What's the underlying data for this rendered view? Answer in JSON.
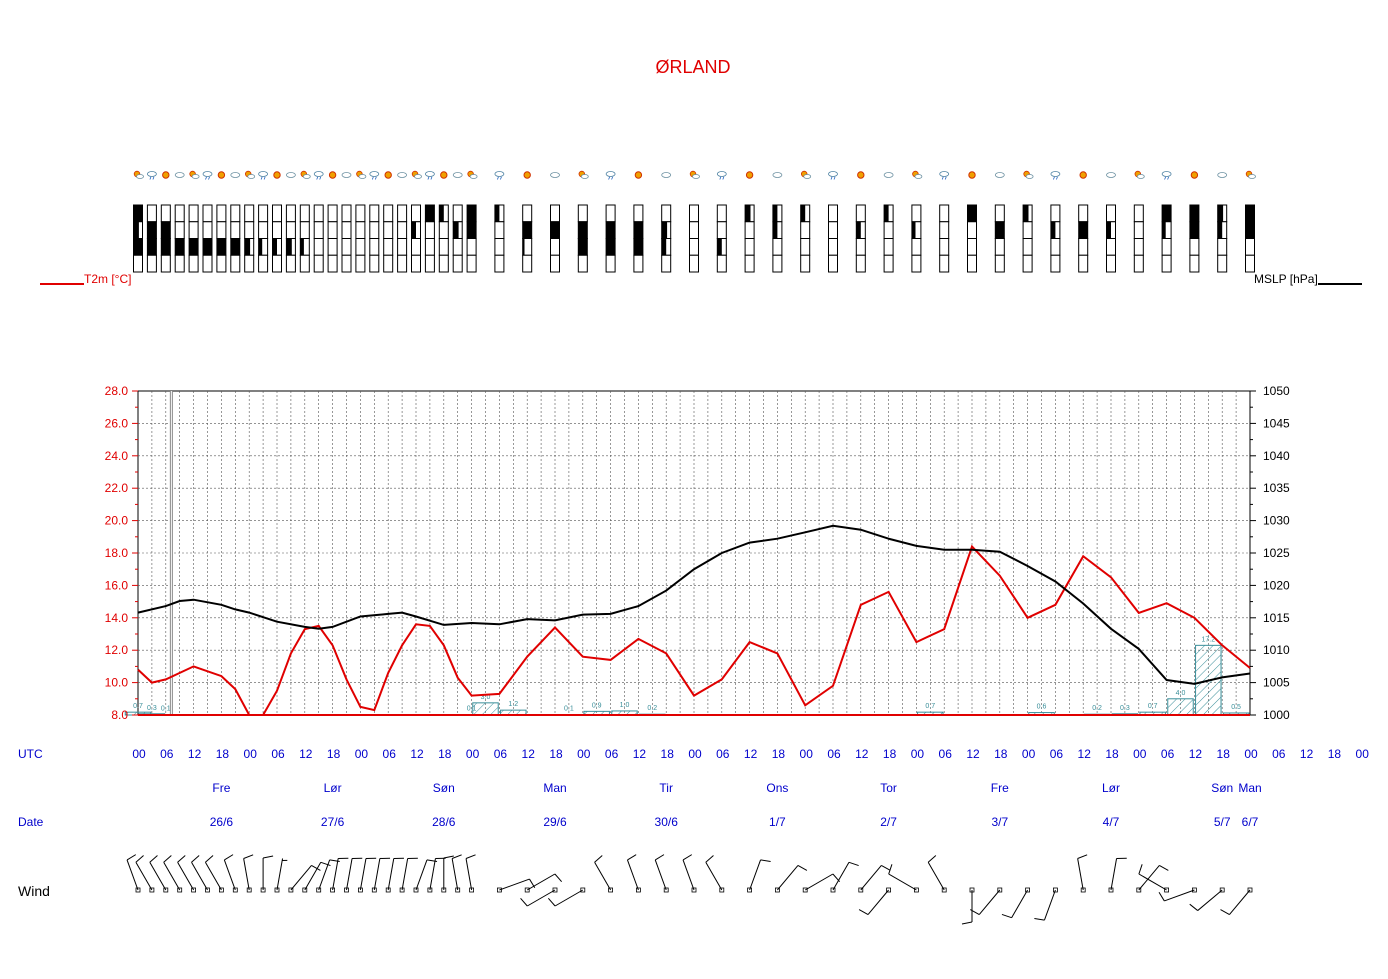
{
  "colors": {
    "temp": "#e00000",
    "mslp": "#000000",
    "precip": "#3a8f9a",
    "labels": "#0000cc",
    "grid": "#555555"
  },
  "labels": {
    "title": "ØRLAND",
    "temp_axis": "T2m [°C]",
    "mslp_axis": "MSLP [hPa]",
    "utc": "UTC",
    "date": "Date",
    "wind": "Wind"
  },
  "chart_data": {
    "type": "line",
    "title": "ØRLAND",
    "x_unit": "hours from 2020-06-25 18 UTC (step 3h to 06 UTC 30/6, then 6h)",
    "x": [
      0,
      3,
      6,
      9,
      12,
      15,
      18,
      21,
      24,
      27,
      30,
      33,
      36,
      39,
      42,
      45,
      48,
      51,
      54,
      57,
      60,
      63,
      66,
      69,
      72,
      75,
      78,
      84,
      90,
      96,
      102,
      108,
      114,
      120,
      126,
      132,
      138,
      144,
      150,
      156,
      162,
      168,
      174,
      180,
      186,
      192,
      198,
      204,
      210,
      216,
      222,
      228,
      234,
      240,
      246,
      252,
      258,
      264,
      270,
      276,
      282,
      288,
      294,
      300,
      306,
      312,
      318,
      324,
      330,
      336,
      342,
      348,
      354,
      360
    ],
    "ylim_temp": [
      8,
      28
    ],
    "ylim_mslp": [
      1000,
      1050
    ],
    "yticks_temp": [
      "28.0",
      "26.0",
      "24.0",
      "22.0",
      "20.0",
      "18.0",
      "16.0",
      "14.0",
      "12.0",
      "10.0",
      "8.0"
    ],
    "yticks_mslp": [
      "1050",
      "1045",
      "1040",
      "1035",
      "1030",
      "1025",
      "1020",
      "1015",
      "1010",
      "1005",
      "1000"
    ],
    "x_tick_labels": [
      "00",
      "06",
      "12",
      "18",
      "00",
      "06",
      "12",
      "18",
      "00",
      "06",
      "12",
      "18",
      "00",
      "06",
      "12",
      "18",
      "00",
      "06",
      "12",
      "18",
      "00",
      "06",
      "12",
      "18",
      "00",
      "06",
      "12",
      "18",
      "00",
      "06",
      "12",
      "18",
      "00",
      "06",
      "12",
      "18",
      "00",
      "06",
      "12",
      "18",
      "00",
      "06",
      "12",
      "18",
      "00"
    ],
    "days": [
      {
        "name": "Fre",
        "date": "26/6"
      },
      {
        "name": "Lør",
        "date": "27/6"
      },
      {
        "name": "Søn",
        "date": "28/6"
      },
      {
        "name": "Man",
        "date": "29/6"
      },
      {
        "name": "Tir",
        "date": "30/6"
      },
      {
        "name": "Ons",
        "date": "1/7"
      },
      {
        "name": "Tor",
        "date": "2/7"
      },
      {
        "name": "Fre",
        "date": "3/7"
      },
      {
        "name": "Lør",
        "date": "4/7"
      },
      {
        "name": "Søn",
        "date": "5/7"
      },
      {
        "name": "Man",
        "date": "6/7"
      }
    ],
    "series": [
      {
        "name": "T2m [°C]",
        "axis": "left",
        "points": [
          [
            0,
            10.8
          ],
          [
            3,
            10.0
          ],
          [
            6,
            10.2
          ],
          [
            12,
            11.0
          ],
          [
            18,
            10.4
          ],
          [
            21,
            9.6
          ],
          [
            24,
            8.0
          ],
          [
            27,
            8.0
          ],
          [
            30,
            9.5
          ],
          [
            33,
            11.8
          ],
          [
            36,
            13.3
          ],
          [
            39,
            13.5
          ],
          [
            42,
            12.3
          ],
          [
            45,
            10.2
          ],
          [
            48,
            8.5
          ],
          [
            51,
            8.3
          ],
          [
            54,
            10.6
          ],
          [
            57,
            12.3
          ],
          [
            60,
            13.6
          ],
          [
            63,
            13.5
          ],
          [
            66,
            12.3
          ],
          [
            69,
            10.3
          ],
          [
            72,
            9.2
          ],
          [
            78,
            9.3
          ],
          [
            84,
            11.6
          ],
          [
            90,
            13.4
          ],
          [
            96,
            11.6
          ],
          [
            102,
            11.4
          ],
          [
            108,
            12.7
          ],
          [
            114,
            11.8
          ],
          [
            120,
            9.2
          ],
          [
            126,
            10.2
          ],
          [
            132,
            12.5
          ],
          [
            138,
            11.8
          ],
          [
            144,
            8.6
          ],
          [
            150,
            9.8
          ],
          [
            156,
            14.8
          ],
          [
            162,
            15.6
          ],
          [
            168,
            12.5
          ],
          [
            174,
            13.3
          ],
          [
            180,
            18.4
          ],
          [
            186,
            16.6
          ],
          [
            192,
            14.0
          ],
          [
            198,
            14.8
          ],
          [
            204,
            17.8
          ],
          [
            210,
            16.5
          ],
          [
            216,
            14.3
          ],
          [
            222,
            14.9
          ],
          [
            228,
            14.0
          ],
          [
            234,
            12.3
          ],
          [
            240,
            10.9
          ]
        ]
      },
      {
        "name": "MSLP [hPa]",
        "axis": "right",
        "points": [
          [
            0,
            1015.8
          ],
          [
            6,
            1016.8
          ],
          [
            9,
            1017.6
          ],
          [
            12,
            1017.8
          ],
          [
            18,
            1017.0
          ],
          [
            21,
            1016.3
          ],
          [
            24,
            1015.8
          ],
          [
            30,
            1014.4
          ],
          [
            36,
            1013.6
          ],
          [
            39,
            1013.3
          ],
          [
            42,
            1013.6
          ],
          [
            48,
            1015.2
          ],
          [
            54,
            1015.6
          ],
          [
            57,
            1015.8
          ],
          [
            60,
            1015.2
          ],
          [
            66,
            1013.9
          ],
          [
            72,
            1014.2
          ],
          [
            78,
            1014.0
          ],
          [
            84,
            1014.8
          ],
          [
            90,
            1014.6
          ],
          [
            96,
            1015.5
          ],
          [
            102,
            1015.6
          ],
          [
            108,
            1016.8
          ],
          [
            114,
            1019.2
          ],
          [
            120,
            1022.5
          ],
          [
            126,
            1025.0
          ],
          [
            132,
            1026.6
          ],
          [
            138,
            1027.2
          ],
          [
            144,
            1028.2
          ],
          [
            150,
            1029.2
          ],
          [
            156,
            1028.6
          ],
          [
            162,
            1027.2
          ],
          [
            168,
            1026.1
          ],
          [
            174,
            1025.5
          ],
          [
            180,
            1025.5
          ],
          [
            186,
            1025.2
          ],
          [
            192,
            1023.0
          ],
          [
            198,
            1020.6
          ],
          [
            204,
            1017.2
          ],
          [
            210,
            1013.3
          ],
          [
            216,
            1010.2
          ],
          [
            222,
            1005.4
          ],
          [
            228,
            1004.8
          ],
          [
            234,
            1005.8
          ],
          [
            240,
            1006.4
          ]
        ]
      }
    ],
    "precip": [
      {
        "x": 0,
        "v": 0.7
      },
      {
        "x": 3,
        "v": 0.3
      },
      {
        "x": 6,
        "v": 0.1
      },
      {
        "x": 72,
        "v": 0.1
      },
      {
        "x": 75,
        "v": 3.0
      },
      {
        "x": 81,
        "v": 1.2
      },
      {
        "x": 93,
        "v": 0.1
      },
      {
        "x": 99,
        "v": 0.9
      },
      {
        "x": 105,
        "v": 1.0
      },
      {
        "x": 111,
        "v": 0.2
      },
      {
        "x": 171,
        "v": 0.7
      },
      {
        "x": 195,
        "v": 0.6
      },
      {
        "x": 207,
        "v": 0.2
      },
      {
        "x": 213,
        "v": 0.3
      },
      {
        "x": 219,
        "v": 0.7
      },
      {
        "x": 225,
        "v": 4.0
      },
      {
        "x": 231,
        "v": 17.2
      },
      {
        "x": 237,
        "v": 0.5
      }
    ],
    "precip_scale_mm_per_degC": 0.25,
    "cloud_columns": {
      "x": [
        0,
        3,
        6,
        9,
        12,
        15,
        18,
        21,
        24,
        27,
        30,
        33,
        36,
        39,
        42,
        45,
        48,
        51,
        54,
        57,
        60,
        63,
        66,
        69,
        72,
        78,
        84,
        90,
        96,
        102,
        108,
        114,
        120,
        126,
        132,
        138,
        144,
        150,
        156,
        162,
        168,
        174,
        180,
        186,
        192,
        198,
        204,
        210,
        216,
        222,
        228,
        234,
        240
      ],
      "fill": [
        [
          1,
          0.6,
          1,
          0
        ],
        [
          0,
          1,
          1,
          0
        ],
        [
          0,
          1,
          1,
          0
        ],
        [
          0,
          0,
          1,
          0
        ],
        [
          0,
          0,
          1,
          0
        ],
        [
          0,
          0,
          1,
          0
        ],
        [
          0,
          0,
          1,
          0
        ],
        [
          0,
          0,
          1,
          0
        ],
        [
          0,
          0,
          0.6,
          0
        ],
        [
          0,
          0,
          0.4,
          0
        ],
        [
          0,
          0,
          0.5,
          0
        ],
        [
          0,
          0,
          0.6,
          0
        ],
        [
          0,
          0,
          0.4,
          0
        ],
        [
          0,
          0,
          0,
          0
        ],
        [
          0,
          0,
          0,
          0
        ],
        [
          0,
          0,
          0,
          0
        ],
        [
          0,
          0,
          0,
          0
        ],
        [
          0,
          0,
          0,
          0
        ],
        [
          0,
          0,
          0,
          0
        ],
        [
          0,
          0,
          0,
          0
        ],
        [
          0,
          0.5,
          0,
          0
        ],
        [
          1,
          0,
          0,
          0
        ],
        [
          0.5,
          0,
          0,
          0
        ],
        [
          0,
          0.6,
          0,
          0
        ],
        [
          1,
          1,
          0,
          0
        ],
        [
          0.5,
          0,
          0,
          0
        ],
        [
          0,
          1,
          0.2,
          0
        ],
        [
          0,
          1,
          0,
          0
        ],
        [
          0,
          1,
          1,
          0
        ],
        [
          0,
          1,
          1,
          0
        ],
        [
          0,
          1,
          1,
          0
        ],
        [
          0,
          0.6,
          0.5,
          0
        ],
        [
          0,
          0,
          0,
          0
        ],
        [
          0,
          0,
          0.5,
          0
        ],
        [
          0.6,
          0,
          0,
          0
        ],
        [
          0.5,
          0.5,
          0,
          0
        ],
        [
          0.5,
          0,
          0,
          0
        ],
        [
          0,
          0,
          0,
          0
        ],
        [
          0,
          0.5,
          0,
          0
        ],
        [
          0.5,
          0,
          0,
          0
        ],
        [
          0,
          0.4,
          0,
          0
        ],
        [
          0,
          0,
          0,
          0
        ],
        [
          1,
          0,
          0,
          0
        ],
        [
          0,
          1,
          0,
          0
        ],
        [
          0.6,
          0,
          0,
          0
        ],
        [
          0,
          0.5,
          0,
          0
        ],
        [
          0,
          1,
          0,
          0
        ],
        [
          0,
          0.5,
          0,
          0
        ],
        [
          0,
          0,
          0,
          0
        ],
        [
          1,
          0.4,
          0,
          0
        ],
        [
          1,
          1,
          0,
          0
        ],
        [
          0.6,
          0.5,
          0,
          0
        ],
        [
          1,
          1,
          0,
          0
        ]
      ]
    },
    "weather_icons": [
      "partly-cloudy-icon",
      "rain-icon",
      "sun-icon",
      "cloud-icon"
    ],
    "wind": [
      {
        "x": 0,
        "dir": 340,
        "spd": 10
      },
      {
        "x": 3,
        "dir": 330,
        "spd": 12
      },
      {
        "x": 6,
        "dir": 330,
        "spd": 12
      },
      {
        "x": 9,
        "dir": 330,
        "spd": 12
      },
      {
        "x": 12,
        "dir": 330,
        "spd": 12
      },
      {
        "x": 15,
        "dir": 330,
        "spd": 10
      },
      {
        "x": 18,
        "dir": 330,
        "spd": 10
      },
      {
        "x": 21,
        "dir": 340,
        "spd": 8
      },
      {
        "x": 24,
        "dir": 350,
        "spd": 8
      },
      {
        "x": 27,
        "dir": 0,
        "spd": 8
      },
      {
        "x": 30,
        "dir": 10,
        "spd": 6
      },
      {
        "x": 33,
        "dir": 40,
        "spd": 8
      },
      {
        "x": 36,
        "dir": 30,
        "spd": 10
      },
      {
        "x": 39,
        "dir": 20,
        "spd": 12
      },
      {
        "x": 42,
        "dir": 10,
        "spd": 12
      },
      {
        "x": 45,
        "dir": 10,
        "spd": 12
      },
      {
        "x": 48,
        "dir": 10,
        "spd": 10
      },
      {
        "x": 51,
        "dir": 10,
        "spd": 10
      },
      {
        "x": 54,
        "dir": 10,
        "spd": 10
      },
      {
        "x": 57,
        "dir": 10,
        "spd": 10
      },
      {
        "x": 60,
        "dir": 20,
        "spd": 12
      },
      {
        "x": 63,
        "dir": 10,
        "spd": 12
      },
      {
        "x": 66,
        "dir": 0,
        "spd": 10
      },
      {
        "x": 69,
        "dir": 350,
        "spd": 10
      },
      {
        "x": 72,
        "dir": 350,
        "spd": 10
      },
      {
        "x": 78,
        "dir": 70,
        "spd": 10
      },
      {
        "x": 84,
        "dir": 60,
        "spd": 10
      },
      {
        "x": 90,
        "dir": 240,
        "spd": 10
      },
      {
        "x": 96,
        "dir": 240,
        "spd": 10
      },
      {
        "x": 102,
        "dir": 330,
        "spd": 10
      },
      {
        "x": 108,
        "dir": 340,
        "spd": 10
      },
      {
        "x": 114,
        "dir": 340,
        "spd": 10
      },
      {
        "x": 120,
        "dir": 340,
        "spd": 10
      },
      {
        "x": 126,
        "dir": 330,
        "spd": 10
      },
      {
        "x": 132,
        "dir": 20,
        "spd": 10
      },
      {
        "x": 138,
        "dir": 40,
        "spd": 8
      },
      {
        "x": 144,
        "dir": 60,
        "spd": 10
      },
      {
        "x": 150,
        "dir": 30,
        "spd": 10
      },
      {
        "x": 156,
        "dir": 40,
        "spd": 10
      },
      {
        "x": 162,
        "dir": 220,
        "spd": 8
      },
      {
        "x": 168,
        "dir": 300,
        "spd": 10
      },
      {
        "x": 174,
        "dir": 330,
        "spd": 10
      },
      {
        "x": 180,
        "dir": 180,
        "spd": 10
      },
      {
        "x": 186,
        "dir": 220,
        "spd": 10
      },
      {
        "x": 192,
        "dir": 210,
        "spd": 8
      },
      {
        "x": 198,
        "dir": 200,
        "spd": 10
      },
      {
        "x": 204,
        "dir": 350,
        "spd": 8
      },
      {
        "x": 210,
        "dir": 10,
        "spd": 10
      },
      {
        "x": 216,
        "dir": 40,
        "spd": 8
      },
      {
        "x": 222,
        "dir": 300,
        "spd": 10
      },
      {
        "x": 228,
        "dir": 250,
        "spd": 10
      },
      {
        "x": 234,
        "dir": 230,
        "spd": 10
      },
      {
        "x": 240,
        "dir": 220,
        "spd": 10
      }
    ]
  }
}
